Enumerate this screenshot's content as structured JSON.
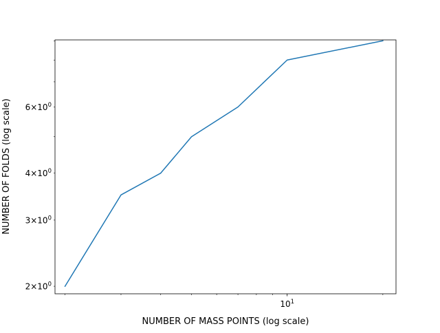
{
  "chart_data": {
    "type": "line",
    "title": "",
    "xlabel": "NUMBER OF MASS POINTS (log scale)",
    "ylabel": "NUMBER OF FOLDS (log scale)",
    "x_scale": "log",
    "y_scale": "log",
    "xlim": [
      1.86,
      22.0
    ],
    "ylim": [
      1.91,
      9.05
    ],
    "grid": false,
    "legend": "none",
    "series": [
      {
        "color": "#1f77b4",
        "x": [
          2,
          3,
          4,
          5,
          7,
          10,
          20
        ],
        "y": [
          2.0,
          3.5,
          4.0,
          5.0,
          6.0,
          8.0,
          9.0
        ]
      }
    ],
    "x_major_ticks": [
      {
        "value": 10,
        "base": "10",
        "exp": "1"
      }
    ],
    "x_minor_ticks": [
      2,
      3,
      4,
      5,
      6,
      7,
      8,
      9,
      20
    ],
    "y_labeled_ticks": [
      {
        "value": 2,
        "mant": "2",
        "base": "10",
        "exp": "0"
      },
      {
        "value": 3,
        "mant": "3",
        "base": "10",
        "exp": "0"
      },
      {
        "value": 4,
        "mant": "4",
        "base": "10",
        "exp": "0"
      },
      {
        "value": 6,
        "mant": "6",
        "base": "10",
        "exp": "0"
      }
    ],
    "y_minor_ticks": [
      5,
      7,
      8,
      9
    ]
  }
}
